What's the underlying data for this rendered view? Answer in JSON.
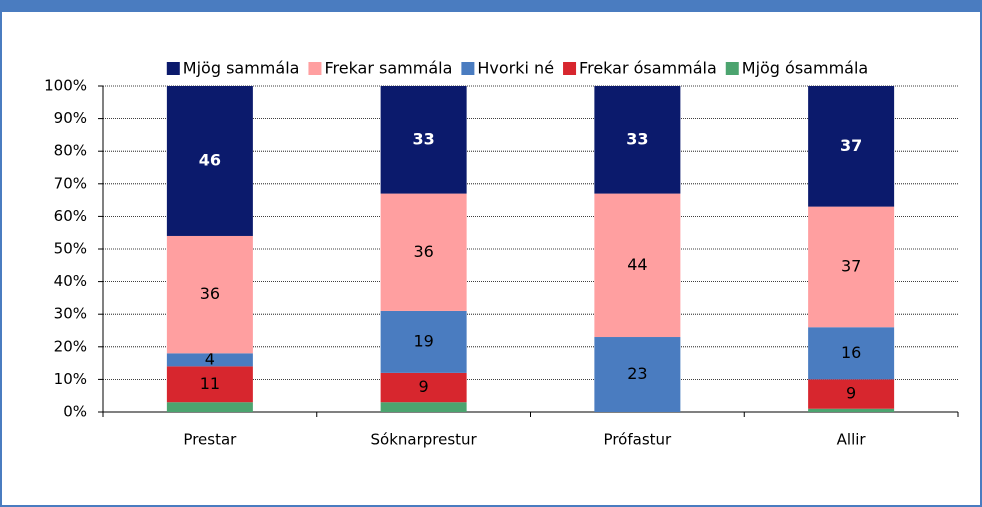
{
  "chart_data": {
    "type": "stacked_bar",
    "categories": [
      "Prestar",
      "Sóknarprestur",
      "Prófastur",
      "Allir"
    ],
    "series": [
      {
        "name": "Mjög ósammála",
        "color": "#4ca46f",
        "values": [
          3,
          3,
          0,
          1
        ],
        "value_labels": [
          null,
          null,
          null,
          null
        ]
      },
      {
        "name": "Frekar ósammála",
        "color": "#d7262e",
        "values": [
          11,
          9,
          0,
          9
        ],
        "value_labels": [
          "11",
          "9",
          null,
          "9"
        ]
      },
      {
        "name": "Hvorki né",
        "color": "#4a7cc0",
        "values": [
          4,
          19,
          23,
          16
        ]
      },
      {
        "name": "Frekar sammála",
        "color": "#ff9fa0",
        "values": [
          36,
          36,
          44,
          37
        ]
      },
      {
        "name": "Mjög sammála",
        "color": "#0b1a6c",
        "values": [
          46,
          33,
          33,
          37
        ],
        "label_color": "#ffffff",
        "label_bold": true
      }
    ],
    "legend_order": [
      4,
      3,
      2,
      1,
      0
    ],
    "ylim": [
      0,
      100
    ],
    "yticks": [
      {
        "value": 0,
        "label": "0%"
      },
      {
        "value": 10,
        "label": "10%"
      },
      {
        "value": 20,
        "label": "20%"
      },
      {
        "value": 30,
        "label": "30%"
      },
      {
        "value": 40,
        "label": "40%"
      },
      {
        "value": 50,
        "label": "50%"
      },
      {
        "value": 60,
        "label": "60%"
      },
      {
        "value": 70,
        "label": "70%"
      },
      {
        "value": 80,
        "label": "80%"
      },
      {
        "value": 90,
        "label": "90%"
      },
      {
        "value": 100,
        "label": "100%"
      }
    ],
    "grid": true,
    "legend": "top"
  }
}
